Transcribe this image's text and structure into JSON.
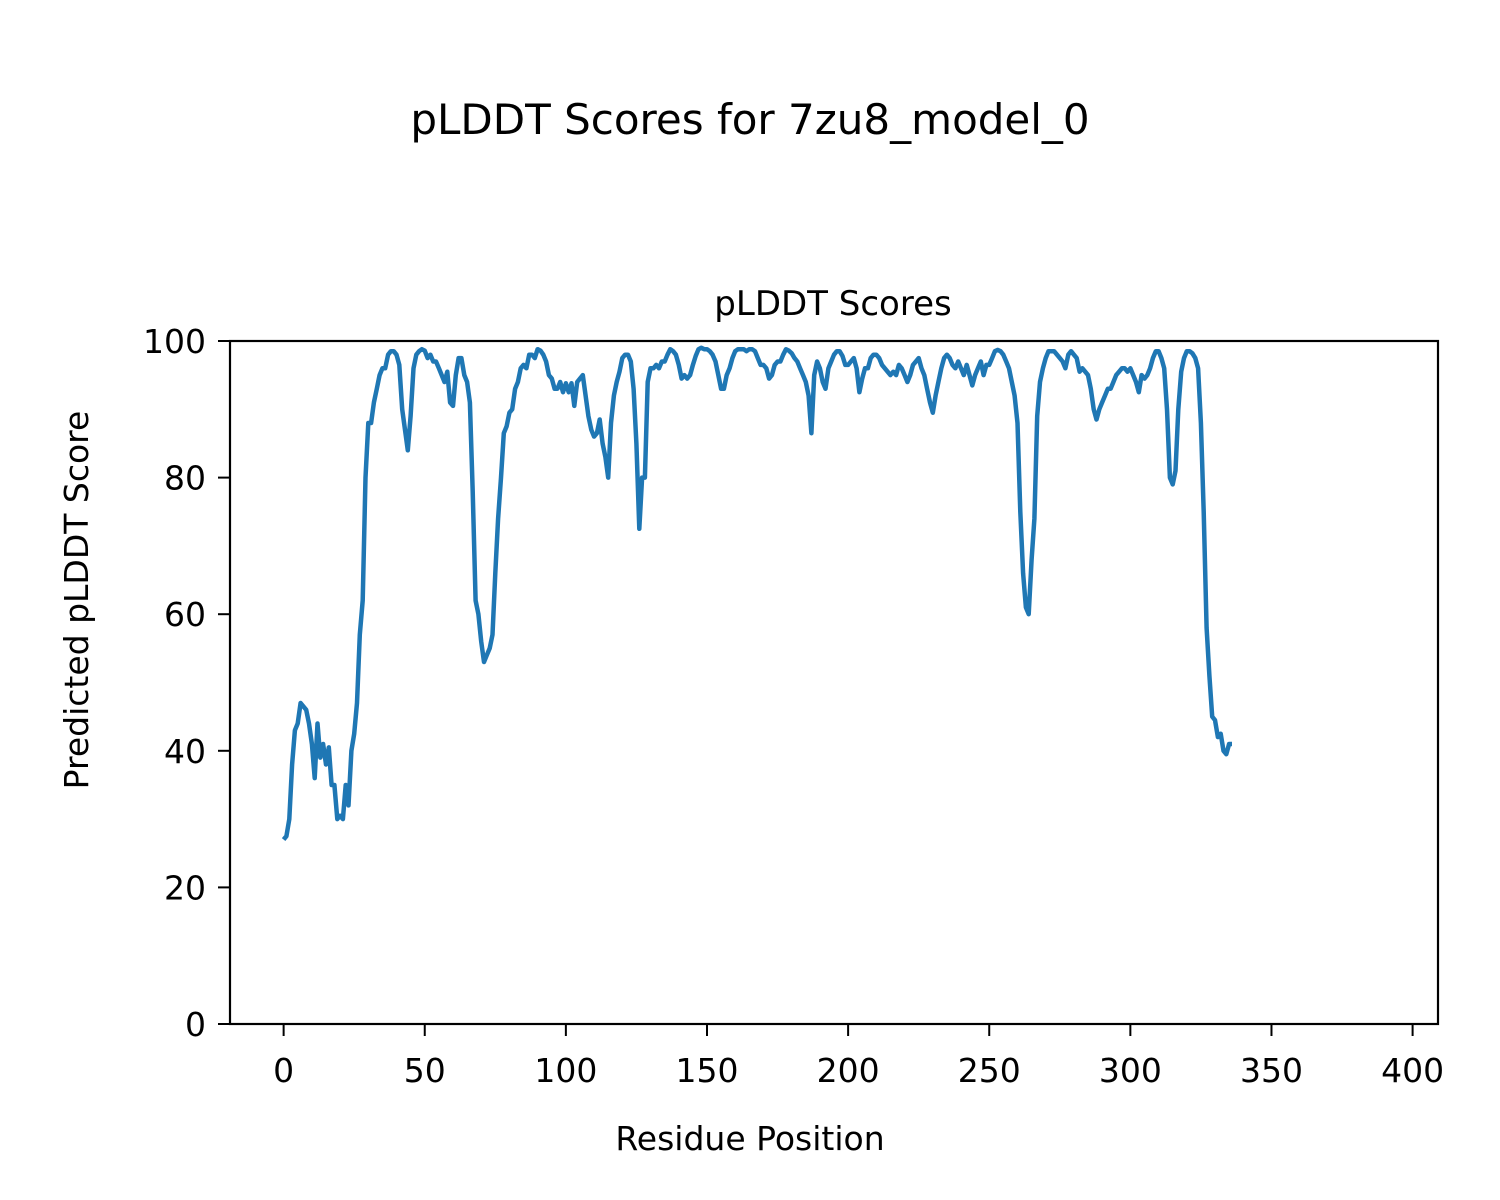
{
  "figure": {
    "suptitle": "pLDDT Scores for 7zu8_model_0"
  },
  "chart_data": {
    "type": "line",
    "title": "pLDDT Scores",
    "xlabel": "Residue Position",
    "ylabel": "Predicted pLDDT Score",
    "xlim": [
      -19,
      409
    ],
    "ylim": [
      0,
      100
    ],
    "xticks": [
      0,
      50,
      100,
      150,
      200,
      250,
      300,
      350,
      400
    ],
    "yticks": [
      0,
      20,
      40,
      60,
      80,
      100
    ],
    "grid": false,
    "line_color": "#1f77b4",
    "series": [
      {
        "points": [
          [
            0,
            27
          ],
          [
            1,
            27.5
          ],
          [
            2,
            30
          ],
          [
            3,
            38
          ],
          [
            4,
            43
          ],
          [
            5,
            44
          ],
          [
            6,
            47
          ],
          [
            7,
            46.5
          ],
          [
            8,
            46
          ],
          [
            9,
            44
          ],
          [
            10,
            41
          ],
          [
            11,
            36
          ],
          [
            12,
            44
          ],
          [
            13,
            39
          ],
          [
            14,
            41
          ],
          [
            15,
            38
          ],
          [
            16,
            40.5
          ],
          [
            17,
            35
          ],
          [
            18,
            35
          ],
          [
            19,
            30
          ],
          [
            20,
            30.5
          ],
          [
            21,
            30
          ],
          [
            22,
            35
          ],
          [
            23,
            32
          ],
          [
            24,
            40
          ],
          [
            25,
            42.5
          ],
          [
            26,
            47
          ],
          [
            27,
            57
          ],
          [
            28,
            62
          ],
          [
            29,
            80
          ],
          [
            30,
            88
          ],
          [
            31,
            88
          ],
          [
            32,
            91
          ],
          [
            33,
            93
          ],
          [
            34,
            95
          ],
          [
            35,
            96
          ],
          [
            36,
            96
          ],
          [
            37,
            98
          ],
          [
            38,
            98.5
          ],
          [
            39,
            98.5
          ],
          [
            40,
            98
          ],
          [
            41,
            96.5
          ],
          [
            42,
            90
          ],
          [
            43,
            87
          ],
          [
            44,
            84
          ],
          [
            45,
            89
          ],
          [
            46,
            96
          ],
          [
            47,
            98
          ],
          [
            48,
            98.5
          ],
          [
            49,
            98.8
          ],
          [
            50,
            98.6
          ],
          [
            51,
            97.5
          ],
          [
            52,
            98
          ],
          [
            53,
            97
          ],
          [
            54,
            97
          ],
          [
            55,
            96
          ],
          [
            56,
            95
          ],
          [
            57,
            94
          ],
          [
            58,
            95.5
          ],
          [
            59,
            91
          ],
          [
            60,
            90.5
          ],
          [
            61,
            95
          ],
          [
            62,
            97.5
          ],
          [
            63,
            97.5
          ],
          [
            64,
            95
          ],
          [
            65,
            94
          ],
          [
            66,
            91
          ],
          [
            67,
            78
          ],
          [
            68,
            62
          ],
          [
            69,
            60
          ],
          [
            70,
            56
          ],
          [
            71,
            53
          ],
          [
            72,
            54
          ],
          [
            73,
            55
          ],
          [
            74,
            57
          ],
          [
            75,
            66
          ],
          [
            76,
            74
          ],
          [
            77,
            80
          ],
          [
            78,
            86.5
          ],
          [
            79,
            87.5
          ],
          [
            80,
            89.5
          ],
          [
            81,
            90
          ],
          [
            82,
            93
          ],
          [
            83,
            94
          ],
          [
            84,
            96
          ],
          [
            85,
            96.5
          ],
          [
            86,
            96
          ],
          [
            87,
            98
          ],
          [
            88,
            98
          ],
          [
            89,
            97.5
          ],
          [
            90,
            98.8
          ],
          [
            91,
            98.6
          ],
          [
            92,
            98
          ],
          [
            93,
            97
          ],
          [
            94,
            95
          ],
          [
            95,
            94.5
          ],
          [
            96,
            93
          ],
          [
            97,
            93
          ],
          [
            98,
            94
          ],
          [
            99,
            92.5
          ],
          [
            100,
            93.8
          ],
          [
            101,
            92.5
          ],
          [
            102,
            93.8
          ],
          [
            103,
            90.5
          ],
          [
            104,
            94
          ],
          [
            105,
            94.5
          ],
          [
            106,
            95
          ],
          [
            107,
            92
          ],
          [
            108,
            89
          ],
          [
            109,
            87
          ],
          [
            110,
            86
          ],
          [
            111,
            86.5
          ],
          [
            112,
            88.5
          ],
          [
            113,
            85
          ],
          [
            114,
            83
          ],
          [
            115,
            80
          ],
          [
            116,
            88
          ],
          [
            117,
            92
          ],
          [
            118,
            94
          ],
          [
            119,
            95.5
          ],
          [
            120,
            97.5
          ],
          [
            121,
            98
          ],
          [
            122,
            98
          ],
          [
            123,
            97
          ],
          [
            124,
            93
          ],
          [
            125,
            85
          ],
          [
            126,
            72.5
          ],
          [
            127,
            80
          ],
          [
            128,
            80
          ],
          [
            129,
            94
          ],
          [
            130,
            96
          ],
          [
            131,
            96
          ],
          [
            132,
            96.5
          ],
          [
            133,
            96
          ],
          [
            134,
            97
          ],
          [
            135,
            97
          ],
          [
            136,
            98
          ],
          [
            137,
            98.8
          ],
          [
            138,
            98.5
          ],
          [
            139,
            98
          ],
          [
            140,
            96.5
          ],
          [
            141,
            94.5
          ],
          [
            142,
            95
          ],
          [
            143,
            94.5
          ],
          [
            144,
            95
          ],
          [
            145,
            96.5
          ],
          [
            146,
            97.8
          ],
          [
            147,
            98.8
          ],
          [
            148,
            99
          ],
          [
            149,
            98.8
          ],
          [
            150,
            98.8
          ],
          [
            151,
            98.5
          ],
          [
            152,
            98
          ],
          [
            153,
            97
          ],
          [
            154,
            95
          ],
          [
            155,
            93
          ],
          [
            156,
            93
          ],
          [
            157,
            95
          ],
          [
            158,
            96
          ],
          [
            159,
            97.5
          ],
          [
            160,
            98.5
          ],
          [
            161,
            98.8
          ],
          [
            162,
            98.8
          ],
          [
            163,
            98.8
          ],
          [
            164,
            98.5
          ],
          [
            165,
            98.8
          ],
          [
            166,
            98.8
          ],
          [
            167,
            98.5
          ],
          [
            168,
            97.5
          ],
          [
            169,
            96.5
          ],
          [
            170,
            96.5
          ],
          [
            171,
            96
          ],
          [
            172,
            94.5
          ],
          [
            173,
            95
          ],
          [
            174,
            96.5
          ],
          [
            175,
            97
          ],
          [
            176,
            97
          ],
          [
            177,
            98
          ],
          [
            178,
            98.8
          ],
          [
            179,
            98.6
          ],
          [
            180,
            98.2
          ],
          [
            181,
            97.5
          ],
          [
            182,
            97
          ],
          [
            183,
            96
          ],
          [
            184,
            95
          ],
          [
            185,
            94
          ],
          [
            186,
            92
          ],
          [
            187,
            86.5
          ],
          [
            188,
            95
          ],
          [
            189,
            97
          ],
          [
            190,
            96
          ],
          [
            191,
            94
          ],
          [
            192,
            93
          ],
          [
            193,
            96
          ],
          [
            194,
            97
          ],
          [
            195,
            98
          ],
          [
            196,
            98.5
          ],
          [
            197,
            98.5
          ],
          [
            198,
            97.8
          ],
          [
            199,
            96.5
          ],
          [
            200,
            96.5
          ],
          [
            201,
            97
          ],
          [
            202,
            97.5
          ],
          [
            203,
            96
          ],
          [
            204,
            92.5
          ],
          [
            205,
            94.5
          ],
          [
            206,
            96
          ],
          [
            207,
            96
          ],
          [
            208,
            97.5
          ],
          [
            209,
            98
          ],
          [
            210,
            98
          ],
          [
            211,
            97.5
          ],
          [
            212,
            96.5
          ],
          [
            213,
            96
          ],
          [
            214,
            95.5
          ],
          [
            215,
            95
          ],
          [
            216,
            95.5
          ],
          [
            217,
            95
          ],
          [
            218,
            96.5
          ],
          [
            219,
            96
          ],
          [
            220,
            95
          ],
          [
            221,
            94
          ],
          [
            222,
            95
          ],
          [
            223,
            96.5
          ],
          [
            224,
            97
          ],
          [
            225,
            97.5
          ],
          [
            226,
            96
          ],
          [
            227,
            95
          ],
          [
            228,
            93
          ],
          [
            229,
            91
          ],
          [
            230,
            89.5
          ],
          [
            231,
            92
          ],
          [
            232,
            94
          ],
          [
            233,
            96
          ],
          [
            234,
            97.5
          ],
          [
            235,
            98
          ],
          [
            236,
            97.5
          ],
          [
            237,
            96.5
          ],
          [
            238,
            96
          ],
          [
            239,
            97
          ],
          [
            240,
            96
          ],
          [
            241,
            95
          ],
          [
            242,
            96.5
          ],
          [
            243,
            95
          ],
          [
            244,
            93.5
          ],
          [
            245,
            95
          ],
          [
            246,
            96
          ],
          [
            247,
            97
          ],
          [
            248,
            95
          ],
          [
            249,
            96.5
          ],
          [
            250,
            96.5
          ],
          [
            251,
            97.5
          ],
          [
            252,
            98.5
          ],
          [
            253,
            98.7
          ],
          [
            254,
            98.5
          ],
          [
            255,
            98
          ],
          [
            256,
            97
          ],
          [
            257,
            96
          ],
          [
            258,
            94
          ],
          [
            259,
            92
          ],
          [
            260,
            88
          ],
          [
            261,
            75
          ],
          [
            262,
            66
          ],
          [
            263,
            61
          ],
          [
            264,
            60
          ],
          [
            265,
            68
          ],
          [
            266,
            74
          ],
          [
            267,
            89
          ],
          [
            268,
            94
          ],
          [
            269,
            96
          ],
          [
            270,
            97.5
          ],
          [
            271,
            98.5
          ],
          [
            272,
            98.5
          ],
          [
            273,
            98.5
          ],
          [
            274,
            98
          ],
          [
            275,
            97.5
          ],
          [
            276,
            97
          ],
          [
            277,
            96
          ],
          [
            278,
            98
          ],
          [
            279,
            98.5
          ],
          [
            280,
            98
          ],
          [
            281,
            97.5
          ],
          [
            282,
            95.5
          ],
          [
            283,
            96
          ],
          [
            284,
            95.5
          ],
          [
            285,
            95
          ],
          [
            286,
            93
          ],
          [
            287,
            90
          ],
          [
            288,
            88.5
          ],
          [
            289,
            90
          ],
          [
            290,
            91
          ],
          [
            291,
            92
          ],
          [
            292,
            93
          ],
          [
            293,
            93
          ],
          [
            294,
            94
          ],
          [
            295,
            95
          ],
          [
            296,
            95.5
          ],
          [
            297,
            96
          ],
          [
            298,
            96
          ],
          [
            299,
            95.5
          ],
          [
            300,
            96
          ],
          [
            301,
            95
          ],
          [
            302,
            94
          ],
          [
            303,
            92.5
          ],
          [
            304,
            95
          ],
          [
            305,
            94.5
          ],
          [
            306,
            95
          ],
          [
            307,
            96
          ],
          [
            308,
            97.5
          ],
          [
            309,
            98.5
          ],
          [
            310,
            98.5
          ],
          [
            311,
            97.5
          ],
          [
            312,
            96
          ],
          [
            313,
            90
          ],
          [
            314,
            80
          ],
          [
            315,
            79
          ],
          [
            316,
            81
          ],
          [
            317,
            90
          ],
          [
            318,
            95.5
          ],
          [
            319,
            97.5
          ],
          [
            320,
            98.5
          ],
          [
            321,
            98.5
          ],
          [
            322,
            98.2
          ],
          [
            323,
            97.5
          ],
          [
            324,
            96
          ],
          [
            325,
            88
          ],
          [
            326,
            75
          ],
          [
            327,
            58
          ],
          [
            328,
            51
          ],
          [
            329,
            45
          ],
          [
            330,
            44.5
          ],
          [
            331,
            42
          ],
          [
            332,
            42.5
          ],
          [
            333,
            40
          ],
          [
            334,
            39.5
          ],
          [
            335,
            41
          ],
          [
            336,
            41
          ]
        ]
      }
    ]
  }
}
